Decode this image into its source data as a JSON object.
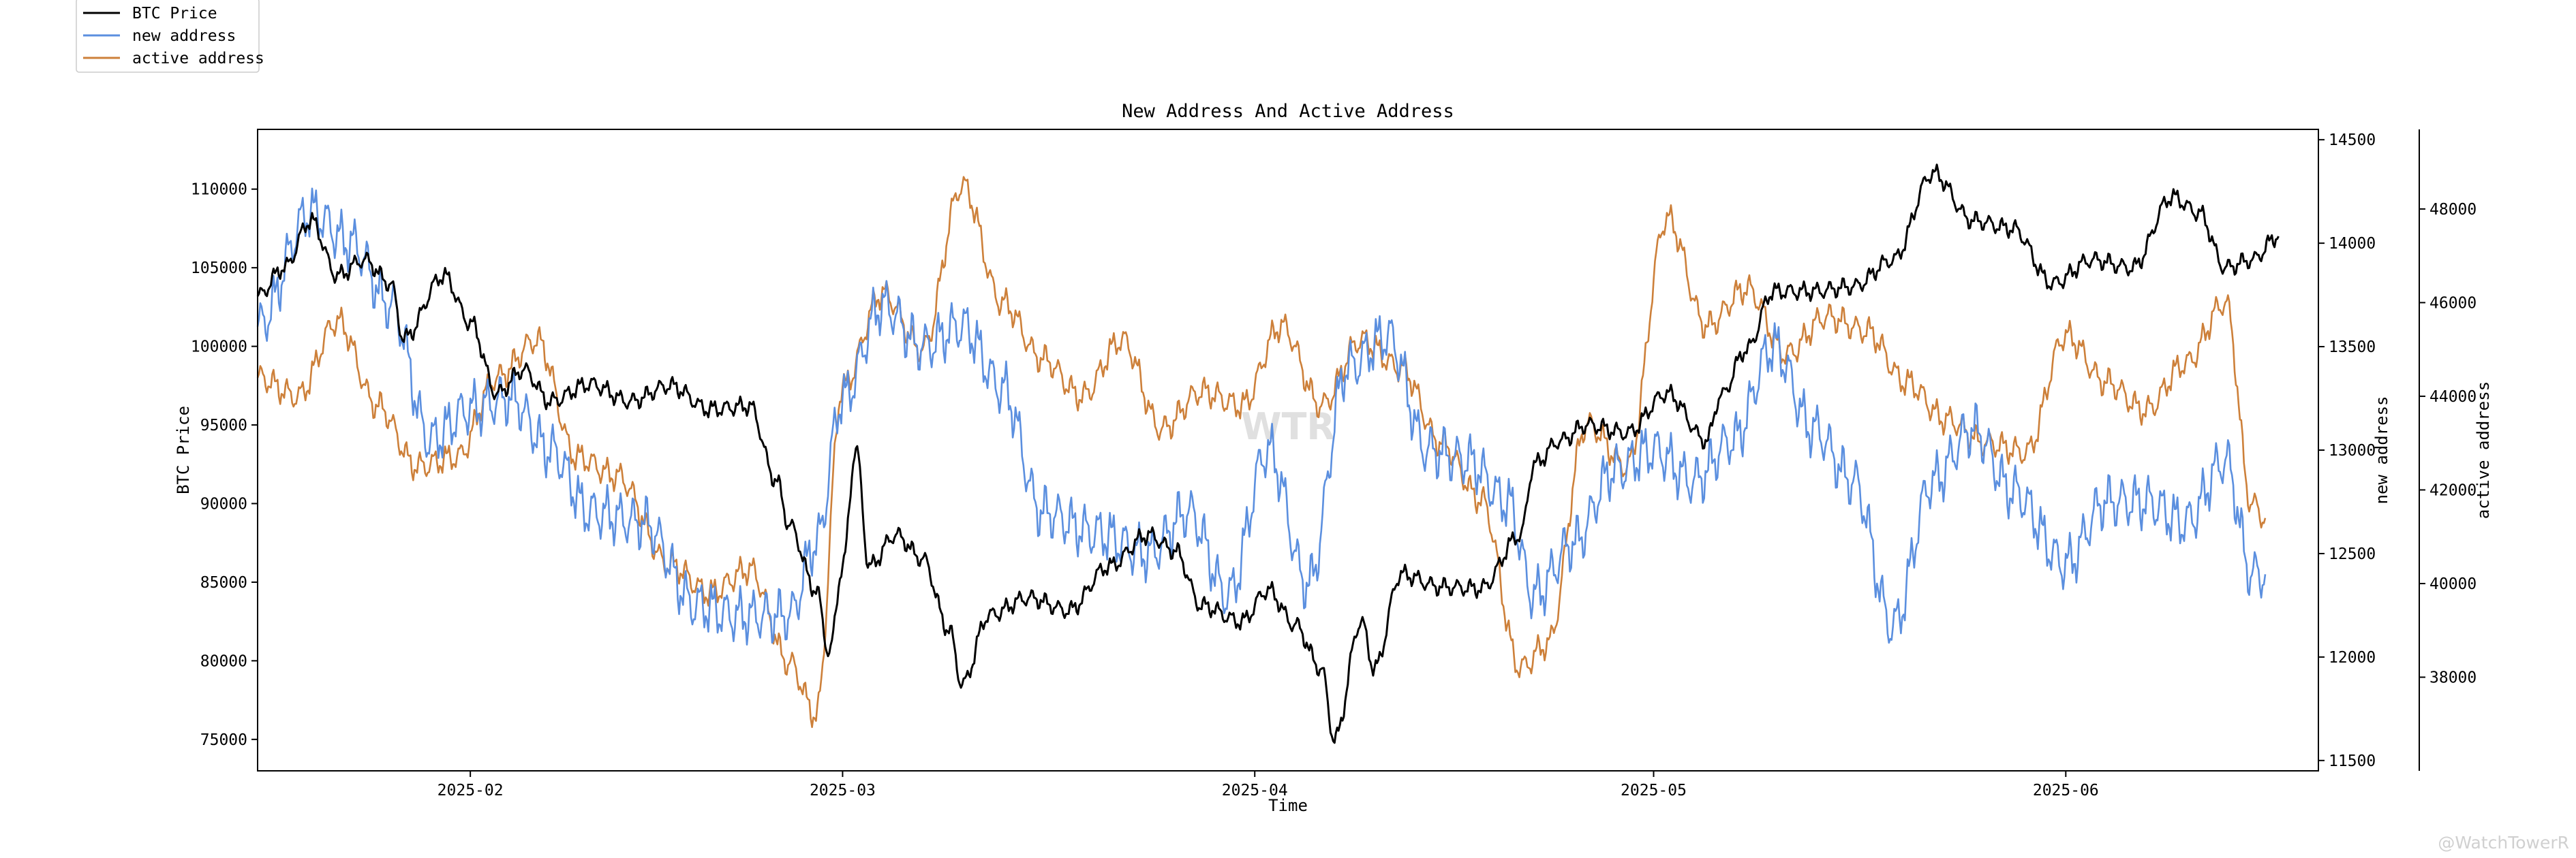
{
  "watermark": "WTR",
  "credit": "@WatchTowerR",
  "chart_data": {
    "type": "line",
    "title": "New Address And Active Address",
    "xlabel": "Time",
    "ylabel_left": "BTC Price",
    "ylabel_right1": "new address",
    "ylabel_right2": "active address",
    "xlim": [
      "2025-01-16",
      "2025-06-20"
    ],
    "xticks": [
      "2025-02-01",
      "2025-03-01",
      "2025-04-01",
      "2025-05-01",
      "2025-06-01"
    ],
    "xtick_labels": [
      "2025-02",
      "2025-03",
      "2025-04",
      "2025-05",
      "2025-06"
    ],
    "axes": {
      "price": {
        "ylim": [
          73000,
          113800
        ],
        "ticks": [
          75000,
          80000,
          85000,
          90000,
          95000,
          100000,
          105000,
          110000
        ]
      },
      "new_address": {
        "ylim": [
          11450,
          14550
        ],
        "ticks": [
          11500,
          12000,
          12500,
          13000,
          13500,
          14000,
          14500
        ]
      },
      "active_address": {
        "ylim": [
          36000,
          49700
        ],
        "ticks": [
          38000,
          40000,
          42000,
          44000,
          46000,
          48000
        ]
      }
    },
    "legend": {
      "position": "top-left",
      "entries": [
        "BTC Price",
        "new address",
        "active address"
      ]
    },
    "grid": false,
    "series": [
      {
        "name": "BTC Price",
        "axis": "price",
        "color": "#000000",
        "x": [
          "2025-01-16",
          "2025-01-18",
          "2025-01-20",
          "2025-01-22",
          "2025-01-24",
          "2025-01-26",
          "2025-01-27",
          "2025-01-30",
          "2025-02-01",
          "2025-02-03",
          "2025-02-05",
          "2025-02-07",
          "2025-02-10",
          "2025-02-13",
          "2025-02-16",
          "2025-02-19",
          "2025-02-22",
          "2025-02-24",
          "2025-02-25",
          "2025-02-27",
          "2025-02-28",
          "2025-03-01",
          "2025-03-02",
          "2025-03-03",
          "2025-03-05",
          "2025-03-07",
          "2025-03-09",
          "2025-03-10",
          "2025-03-12",
          "2025-03-15",
          "2025-03-18",
          "2025-03-21",
          "2025-03-24",
          "2025-03-26",
          "2025-03-28",
          "2025-03-31",
          "2025-04-02",
          "2025-04-04",
          "2025-04-06",
          "2025-04-07",
          "2025-04-09",
          "2025-04-10",
          "2025-04-12",
          "2025-04-15",
          "2025-04-18",
          "2025-04-21",
          "2025-04-22",
          "2025-04-24",
          "2025-04-26",
          "2025-04-29",
          "2025-05-02",
          "2025-05-05",
          "2025-05-06",
          "2025-05-08",
          "2025-05-10",
          "2025-05-13",
          "2025-05-16",
          "2025-05-19",
          "2025-05-22",
          "2025-05-25",
          "2025-05-28",
          "2025-05-31",
          "2025-06-03",
          "2025-06-06",
          "2025-06-09",
          "2025-06-11",
          "2025-06-13",
          "2025-06-15",
          "2025-06-17"
        ],
        "values": [
          103200,
          105000,
          108000,
          104500,
          105500,
          104000,
          100500,
          104500,
          101500,
          97000,
          98500,
          96500,
          97600,
          96500,
          97500,
          96000,
          96200,
          91500,
          88600,
          84500,
          80500,
          86000,
          93500,
          86000,
          88000,
          86500,
          82000,
          78500,
          82900,
          84000,
          83200,
          86000,
          88000,
          87000,
          83500,
          82500,
          84500,
          82300,
          79500,
          75000,
          82500,
          79500,
          85500,
          84700,
          84600,
          88000,
          92500,
          94000,
          95000,
          94500,
          97000,
          94000,
          96800,
          99800,
          103500,
          103500,
          103800,
          105500,
          111000,
          108000,
          107500,
          104000,
          105500,
          105000,
          109500,
          108500,
          105000,
          105500,
          107000
        ]
      },
      {
        "name": "new address",
        "axis": "new_address",
        "color": "#5b8fdf",
        "x": [
          "2025-01-16",
          "2025-01-20",
          "2025-01-23",
          "2025-01-26",
          "2025-01-29",
          "2025-02-01",
          "2025-02-04",
          "2025-02-07",
          "2025-02-10",
          "2025-02-14",
          "2025-02-18",
          "2025-02-21",
          "2025-02-25",
          "2025-02-27",
          "2025-03-01",
          "2025-03-04",
          "2025-03-07",
          "2025-03-10",
          "2025-03-13",
          "2025-03-16",
          "2025-03-20",
          "2025-03-24",
          "2025-03-27",
          "2025-03-30",
          "2025-04-02",
          "2025-04-05",
          "2025-04-08",
          "2025-04-11",
          "2025-04-14",
          "2025-04-17",
          "2025-04-20",
          "2025-04-22",
          "2025-04-25",
          "2025-04-28",
          "2025-05-01",
          "2025-05-04",
          "2025-05-07",
          "2025-05-10",
          "2025-05-13",
          "2025-05-16",
          "2025-05-19",
          "2025-05-22",
          "2025-05-25",
          "2025-05-28",
          "2025-06-01",
          "2025-06-04",
          "2025-06-07",
          "2025-06-10",
          "2025-06-13",
          "2025-06-15",
          "2025-06-16"
        ],
        "values": [
          13600,
          14150,
          14000,
          13700,
          13050,
          13200,
          13250,
          13000,
          12700,
          12650,
          12250,
          12200,
          12200,
          12550,
          13250,
          13700,
          13500,
          13600,
          13300,
          12700,
          12600,
          12500,
          12700,
          12300,
          13000,
          12350,
          13400,
          13550,
          13000,
          12950,
          12750,
          12300,
          12550,
          12900,
          13000,
          12850,
          13050,
          13500,
          13100,
          12850,
          12150,
          12850,
          13100,
          12800,
          12450,
          12750,
          12750,
          12650,
          12950,
          12400,
          12400
        ]
      },
      {
        "name": "active address",
        "axis": "active_address",
        "color": "#cd803a",
        "x": [
          "2025-01-16",
          "2025-01-19",
          "2025-01-22",
          "2025-01-25",
          "2025-01-28",
          "2025-01-31",
          "2025-02-03",
          "2025-02-06",
          "2025-02-09",
          "2025-02-12",
          "2025-02-16",
          "2025-02-19",
          "2025-02-22",
          "2025-02-25",
          "2025-02-27",
          "2025-03-01",
          "2025-03-04",
          "2025-03-07",
          "2025-03-10",
          "2025-03-13",
          "2025-03-16",
          "2025-03-19",
          "2025-03-22",
          "2025-03-25",
          "2025-03-28",
          "2025-03-31",
          "2025-04-03",
          "2025-04-06",
          "2025-04-09",
          "2025-04-12",
          "2025-04-15",
          "2025-04-18",
          "2025-04-21",
          "2025-04-23",
          "2025-04-26",
          "2025-04-29",
          "2025-05-02",
          "2025-05-05",
          "2025-05-08",
          "2025-05-11",
          "2025-05-14",
          "2025-05-17",
          "2025-05-20",
          "2025-05-23",
          "2025-05-26",
          "2025-05-29",
          "2025-06-01",
          "2025-06-04",
          "2025-06-07",
          "2025-06-10",
          "2025-06-13",
          "2025-06-15",
          "2025-06-16"
        ],
        "values": [
          44400,
          44000,
          45600,
          43800,
          42500,
          42700,
          44400,
          45200,
          42700,
          42300,
          40400,
          39800,
          40300,
          38300,
          37200,
          44200,
          46200,
          45000,
          48500,
          46000,
          44800,
          44000,
          45200,
          43300,
          44100,
          43800,
          45500,
          43800,
          45200,
          44600,
          43000,
          41800,
          38200,
          38700,
          43400,
          42500,
          47800,
          45500,
          46300,
          44900,
          45700,
          45400,
          44300,
          43500,
          43000,
          42800,
          45300,
          44300,
          43700,
          44700,
          46000,
          41700,
          41400
        ]
      }
    ]
  }
}
